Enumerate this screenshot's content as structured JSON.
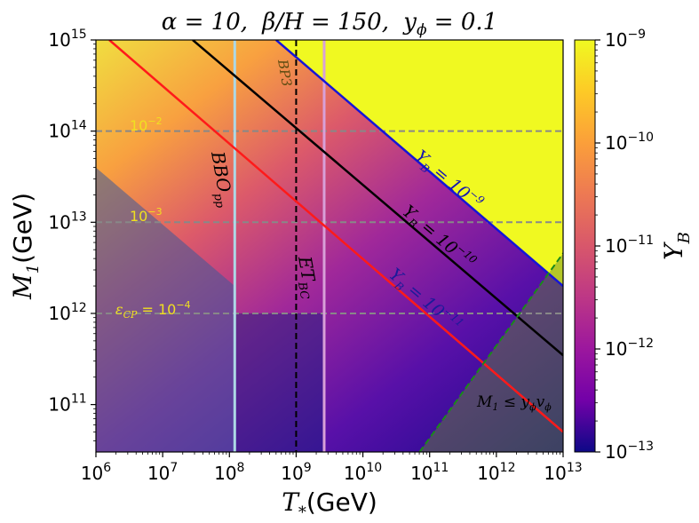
{
  "chart_data": {
    "type": "heatmap",
    "title": "α = 10,  β/H = 150,  y_ϕ = 0.1",
    "title_parts": {
      "alpha": "α = 10,",
      "beta": "β/H = 150,",
      "yphi": "y",
      "yphi_sub": "ϕ",
      "yphi_val": " = 0.1"
    },
    "xlabel": "T",
    "xlabel_sub": "*",
    "xlabel_unit": "(GeV)",
    "ylabel": "M",
    "ylabel_sub": "1",
    "ylabel_unit": "(GeV)",
    "xscale": "log",
    "yscale": "log",
    "xlim_log10": [
      6,
      13
    ],
    "ylim_log10": [
      10.48,
      15
    ],
    "x_ticks_log10": [
      6,
      7,
      8,
      9,
      10,
      11,
      12,
      13
    ],
    "y_ticks_log10": [
      11,
      12,
      13,
      14,
      15
    ],
    "tick_base": "10",
    "colorbar": {
      "label": "Y",
      "label_sub": "B",
      "scale": "log",
      "range_log10": [
        -13,
        -9
      ],
      "ticks_log10": [
        -9,
        -10,
        -11,
        -12,
        -13
      ],
      "colormap": "plasma"
    },
    "contours": [
      {
        "name": "Y_B = 10^-9",
        "label": "Y",
        "label_sub": "B",
        "label_eq": " = 10",
        "label_exp": "−9",
        "color": "#1515d8",
        "points_log10": [
          [
            8.7,
            15.0
          ],
          [
            13.0,
            12.3
          ]
        ]
      },
      {
        "name": "Y_B = 10^-10",
        "label": "Y",
        "label_sub": "B",
        "label_eq": " = 10",
        "label_exp": "−10",
        "color": "#000000",
        "points_log10": [
          [
            7.45,
            15.0
          ],
          [
            13.0,
            11.54
          ]
        ]
      },
      {
        "name": "Y_B = 10^-11",
        "label": "Y",
        "label_sub": "B",
        "label_eq": " = 10",
        "label_exp": "−11",
        "color": "#ff1a1a",
        "points_log10": [
          [
            6.2,
            15.0
          ],
          [
            13.0,
            10.7
          ]
        ]
      }
    ],
    "horizontal_lines": [
      {
        "label": "10",
        "label_exp": "−2",
        "y_log10": 14.0,
        "color": "#888888"
      },
      {
        "label": "10",
        "label_exp": "−3",
        "y_log10": 13.0,
        "color": "#888888"
      },
      {
        "label_prefix": "ε",
        "label_prefix_sub": "CP",
        "label": " = 10",
        "label_exp": "−4",
        "y_log10": 12.0,
        "color": "#888888"
      }
    ],
    "vertical_lines": [
      {
        "name": "BBO",
        "label": "BBO",
        "label_sub": "pp",
        "x_log10": 8.08,
        "color": "#add8e6",
        "style": "solid"
      },
      {
        "name": "ET",
        "label": "ET",
        "label_sub": "BC",
        "x_log10": 9.0,
        "color": "#000000",
        "style": "dashed"
      },
      {
        "name": "BP3",
        "label": "BP3",
        "x_log10": 9.42,
        "color": "#d8a0d8",
        "style": "solid"
      }
    ],
    "bound_line": {
      "label": "M",
      "label_sub1": "1",
      "label_mid": " ≤ y",
      "label_sub2": "ϕ",
      "label_end": "v",
      "label_sub3": "ϕ",
      "color": "#1a8a1a",
      "style": "dashed",
      "points_log10": [
        [
          10.85,
          10.48
        ],
        [
          13.0,
          12.66
        ]
      ]
    }
  }
}
